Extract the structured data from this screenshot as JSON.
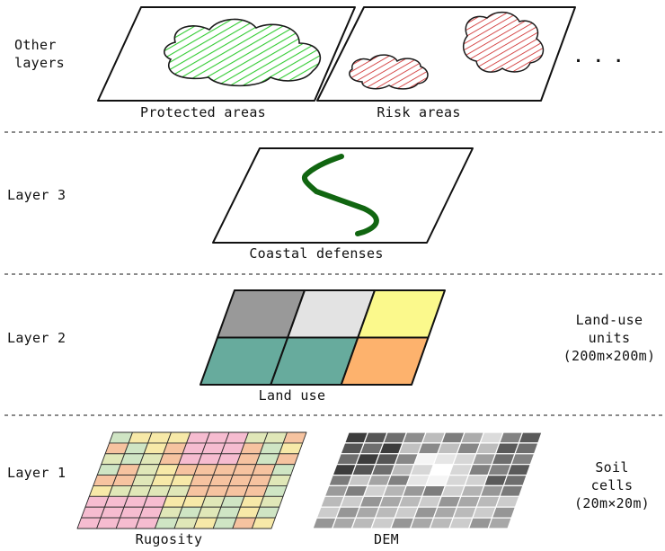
{
  "sections": {
    "other": {
      "label_lines": [
        "Other",
        "layers"
      ],
      "panels": [
        "Protected areas",
        "Risk areas"
      ],
      "more": ". . ."
    },
    "layer3": {
      "label": "Layer 3",
      "panel": "Coastal defenses"
    },
    "layer2": {
      "label": "Layer 2",
      "panel": "Land use",
      "side_lines": [
        "Land-use",
        "units",
        "(200m×200m)"
      ],
      "unit_colors": [
        "#999999",
        "#e3e3e3",
        "#fbf98c",
        "#67ab9d",
        "#67ab9d",
        "#fdb26d"
      ]
    },
    "layer1": {
      "label": "Layer 1",
      "panels": [
        "Rugosity",
        "DEM"
      ],
      "side_lines": [
        "Soil",
        "cells",
        "(20m×20m)"
      ]
    }
  },
  "colors": {
    "protected": "#33cc33",
    "risk": "#cc2222",
    "defense_line": "#116611",
    "rugosity_palette": [
      "#cfe5c4",
      "#f6c3a0",
      "#f7e9a8",
      "#f6bcd0",
      "#e0e7b8"
    ]
  }
}
